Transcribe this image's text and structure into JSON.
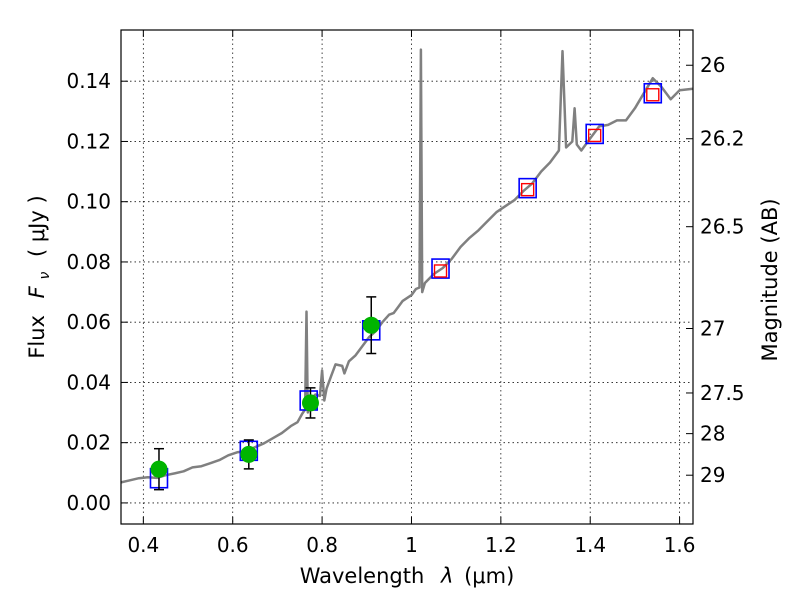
{
  "chart_data": {
    "type": "scatter",
    "xlabel_text": "Wavelength",
    "xlabel_symbol": "λ",
    "xlabel_unit": "(μm)",
    "ylabel_text": "Flux",
    "ylabel_symbol": "F",
    "ylabel_subscript": "ν",
    "ylabel_unit": "( μJy )",
    "y2label": "Magnitude (AB)",
    "xlim": [
      0.35,
      1.63
    ],
    "ylim": [
      -0.007,
      0.157
    ],
    "grid": true,
    "x_ticks": [
      0.4,
      0.6,
      0.8,
      1.0,
      1.2,
      1.4,
      1.6
    ],
    "x_tick_labels": [
      "0.4",
      "0.6",
      "0.8",
      "1",
      "1.2",
      "1.4",
      "1.6"
    ],
    "y_ticks": [
      0.0,
      0.02,
      0.04,
      0.06,
      0.08,
      0.1,
      0.12,
      0.14
    ],
    "y_tick_labels": [
      "0.00",
      "0.02",
      "0.04",
      "0.06",
      "0.08",
      "0.10",
      "0.12",
      "0.14"
    ],
    "y2_ticks": [
      {
        "label": "26",
        "flux": 0.1453
      },
      {
        "label": "26.2",
        "flux": 0.1209
      },
      {
        "label": "26.5",
        "flux": 0.0917
      },
      {
        "label": "27",
        "flux": 0.0579
      },
      {
        "label": "27.5",
        "flux": 0.0365
      },
      {
        "label": "28",
        "flux": 0.023
      },
      {
        "label": "29",
        "flux": 0.0092
      }
    ],
    "series": [
      {
        "kind": "spectrum",
        "color": "#808080",
        "points": [
          [
            0.35,
            0.0068
          ],
          [
            0.37,
            0.0075
          ],
          [
            0.39,
            0.0082
          ],
          [
            0.41,
            0.0085
          ],
          [
            0.43,
            0.0083
          ],
          [
            0.45,
            0.0092
          ],
          [
            0.47,
            0.0098
          ],
          [
            0.49,
            0.0105
          ],
          [
            0.51,
            0.0118
          ],
          [
            0.53,
            0.0122
          ],
          [
            0.55,
            0.0132
          ],
          [
            0.57,
            0.0142
          ],
          [
            0.59,
            0.0158
          ],
          [
            0.61,
            0.0168
          ],
          [
            0.63,
            0.0172
          ],
          [
            0.65,
            0.0185
          ],
          [
            0.67,
            0.0198
          ],
          [
            0.69,
            0.0215
          ],
          [
            0.71,
            0.0232
          ],
          [
            0.73,
            0.0255
          ],
          [
            0.745,
            0.0268
          ],
          [
            0.755,
            0.0295
          ],
          [
            0.762,
            0.031
          ],
          [
            0.765,
            0.0635
          ],
          [
            0.768,
            0.03
          ],
          [
            0.775,
            0.0345
          ],
          [
            0.785,
            0.036
          ],
          [
            0.795,
            0.0355
          ],
          [
            0.8,
            0.044
          ],
          [
            0.805,
            0.034
          ],
          [
            0.81,
            0.038
          ],
          [
            0.82,
            0.042
          ],
          [
            0.83,
            0.046
          ],
          [
            0.845,
            0.0455
          ],
          [
            0.85,
            0.043
          ],
          [
            0.86,
            0.047
          ],
          [
            0.875,
            0.049
          ],
          [
            0.89,
            0.052
          ],
          [
            0.905,
            0.055
          ],
          [
            0.92,
            0.057
          ],
          [
            0.935,
            0.06
          ],
          [
            0.95,
            0.0625
          ],
          [
            0.96,
            0.063
          ],
          [
            0.97,
            0.065
          ],
          [
            0.98,
            0.067
          ],
          [
            0.99,
            0.068
          ],
          [
            1.0,
            0.069
          ],
          [
            1.01,
            0.071
          ],
          [
            1.018,
            0.0715
          ],
          [
            1.021,
            0.1505
          ],
          [
            1.024,
            0.07
          ],
          [
            1.03,
            0.073
          ],
          [
            1.05,
            0.076
          ],
          [
            1.07,
            0.078
          ],
          [
            1.09,
            0.081
          ],
          [
            1.11,
            0.085
          ],
          [
            1.13,
            0.088
          ],
          [
            1.15,
            0.0905
          ],
          [
            1.17,
            0.0935
          ],
          [
            1.19,
            0.0965
          ],
          [
            1.21,
            0.0985
          ],
          [
            1.23,
            0.1005
          ],
          [
            1.25,
            0.1035
          ],
          [
            1.27,
            0.106
          ],
          [
            1.29,
            0.11
          ],
          [
            1.31,
            0.113
          ],
          [
            1.33,
            0.117
          ],
          [
            1.338,
            0.15
          ],
          [
            1.346,
            0.118
          ],
          [
            1.36,
            0.12
          ],
          [
            1.365,
            0.131
          ],
          [
            1.37,
            0.119
          ],
          [
            1.38,
            0.117
          ],
          [
            1.4,
            0.121
          ],
          [
            1.42,
            0.125
          ],
          [
            1.44,
            0.1255
          ],
          [
            1.46,
            0.127
          ],
          [
            1.48,
            0.127
          ],
          [
            1.5,
            0.131
          ],
          [
            1.52,
            0.136
          ],
          [
            1.54,
            0.141
          ],
          [
            1.56,
            0.138
          ],
          [
            1.58,
            0.134
          ],
          [
            1.6,
            0.137
          ],
          [
            1.63,
            0.1375
          ]
        ]
      },
      {
        "kind": "model-photometry",
        "marker": "open-square",
        "color": "#0000ff",
        "points": [
          [
            0.435,
            0.0082
          ],
          [
            0.636,
            0.0173
          ],
          [
            0.77,
            0.034
          ],
          [
            0.91,
            0.0573
          ],
          [
            1.065,
            0.0778
          ],
          [
            1.26,
            0.1045
          ],
          [
            1.41,
            0.1225
          ],
          [
            1.54,
            0.136
          ]
        ]
      },
      {
        "kind": "observed-photometry",
        "marker": "filled-circle",
        "color": "#00b400",
        "points": [
          [
            0.435,
            0.0112,
            0.0068
          ],
          [
            0.636,
            0.0161,
            0.0048
          ],
          [
            0.774,
            0.0332,
            0.005
          ],
          [
            0.91,
            0.059,
            0.0094
          ]
        ]
      },
      {
        "kind": "nir-photometry",
        "marker": "open-square-small",
        "color": "#ff0000",
        "points": [
          [
            1.065,
            0.077
          ],
          [
            1.26,
            0.104
          ],
          [
            1.41,
            0.122
          ],
          [
            1.54,
            0.1355
          ]
        ]
      }
    ]
  }
}
